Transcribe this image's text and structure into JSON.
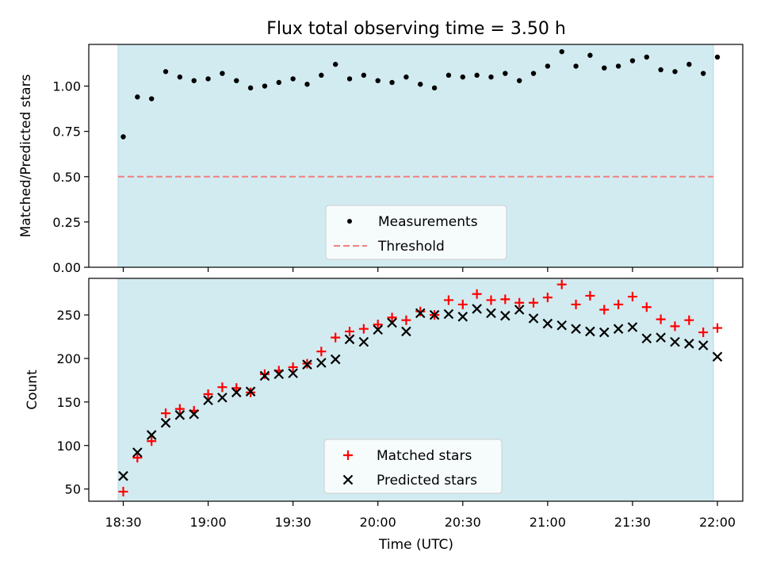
{
  "chart_data": {
    "title": "Flux total observing time = 3.50 h",
    "x_tick_labels": [
      "18:30",
      "19:00",
      "19:30",
      "20:00",
      "20:30",
      "21:00",
      "21:30",
      "22:00"
    ],
    "xlabel": "Time (UTC)",
    "x_unit": "minutes after 18:30 UTC",
    "shaded_region_color": "#d2ebf0",
    "panels": [
      {
        "type": "scatter",
        "ylabel": "Matched/Predicted stars",
        "ylim": [
          0,
          1.23
        ],
        "yticks": [
          0.0,
          0.25,
          0.5,
          0.75,
          1.0
        ],
        "ytick_labels": [
          "0.00",
          "0.25",
          "0.50",
          "0.75",
          "1.00"
        ],
        "threshold": 0.5,
        "threshold_color": "#f08080",
        "legend": {
          "placement": "lower center",
          "entries": [
            "Measurements",
            "Threshold"
          ]
        },
        "series": [
          {
            "name": "Measurements",
            "marker": "dot",
            "color": "#000000",
            "x": [
              0,
              5,
              10,
              15,
              20,
              25,
              30,
              35,
              40,
              45,
              50,
              55,
              60,
              65,
              70,
              75,
              80,
              85,
              90,
              95,
              100,
              105,
              110,
              115,
              120,
              125,
              130,
              135,
              140,
              145,
              150,
              155,
              160,
              165,
              170,
              175,
              180,
              185,
              190,
              195,
              200,
              205,
              210
            ],
            "y": [
              0.72,
              0.94,
              0.93,
              1.08,
              1.05,
              1.03,
              1.04,
              1.07,
              1.03,
              0.99,
              1.0,
              1.02,
              1.04,
              1.01,
              1.06,
              1.12,
              1.04,
              1.06,
              1.03,
              1.02,
              1.05,
              1.01,
              0.99,
              1.06,
              1.05,
              1.06,
              1.05,
              1.07,
              1.03,
              1.07,
              1.11,
              1.19,
              1.11,
              1.17,
              1.1,
              1.11,
              1.14,
              1.16,
              1.09,
              1.08,
              1.12,
              1.07,
              1.16
            ]
          }
        ]
      },
      {
        "type": "scatter",
        "ylabel": "Count",
        "ylim": [
          36,
          292
        ],
        "yticks": [
          50,
          100,
          150,
          200,
          250
        ],
        "ytick_labels": [
          "50",
          "100",
          "150",
          "200",
          "250"
        ],
        "legend": {
          "placement": "lower center",
          "entries": [
            "Matched stars",
            "Predicted stars"
          ]
        },
        "series": [
          {
            "name": "Matched stars",
            "marker": "plus",
            "color": "#ff0000",
            "x": [
              0,
              5,
              10,
              15,
              20,
              25,
              30,
              35,
              40,
              45,
              50,
              55,
              60,
              65,
              70,
              75,
              80,
              85,
              90,
              95,
              100,
              105,
              110,
              115,
              120,
              125,
              130,
              135,
              140,
              145,
              150,
              155,
              160,
              165,
              170,
              175,
              180,
              185,
              190,
              195,
              200,
              205,
              210
            ],
            "y": [
              47,
              86,
              105,
              137,
              142,
              140,
              159,
              167,
              166,
              161,
              182,
              186,
              190,
              194,
              208,
              224,
              231,
              234,
              239,
              247,
              244,
              254,
              250,
              267,
              262,
              274,
              267,
              268,
              264,
              264,
              270,
              285,
              262,
              272,
              256,
              262,
              271,
              259,
              245,
              237,
              244,
              230,
              235
            ]
          },
          {
            "name": "Predicted stars",
            "marker": "x",
            "color": "#000000",
            "x": [
              0,
              5,
              10,
              15,
              20,
              25,
              30,
              35,
              40,
              45,
              50,
              55,
              60,
              65,
              70,
              75,
              80,
              85,
              90,
              95,
              100,
              105,
              110,
              115,
              120,
              125,
              130,
              135,
              140,
              145,
              150,
              155,
              160,
              165,
              170,
              175,
              180,
              185,
              190,
              195,
              200,
              205,
              210
            ],
            "y": [
              65,
              92,
              112,
              126,
              135,
              136,
              152,
              155,
              161,
              162,
              180,
              182,
              183,
              193,
              195,
              199,
              222,
              219,
              233,
              241,
              231,
              252,
              250,
              251,
              248,
              257,
              252,
              249,
              256,
              246,
              240,
              238,
              234,
              231,
              230,
              234,
              236,
              223,
              224,
              219,
              217,
              215,
              202
            ]
          }
        ]
      }
    ]
  }
}
